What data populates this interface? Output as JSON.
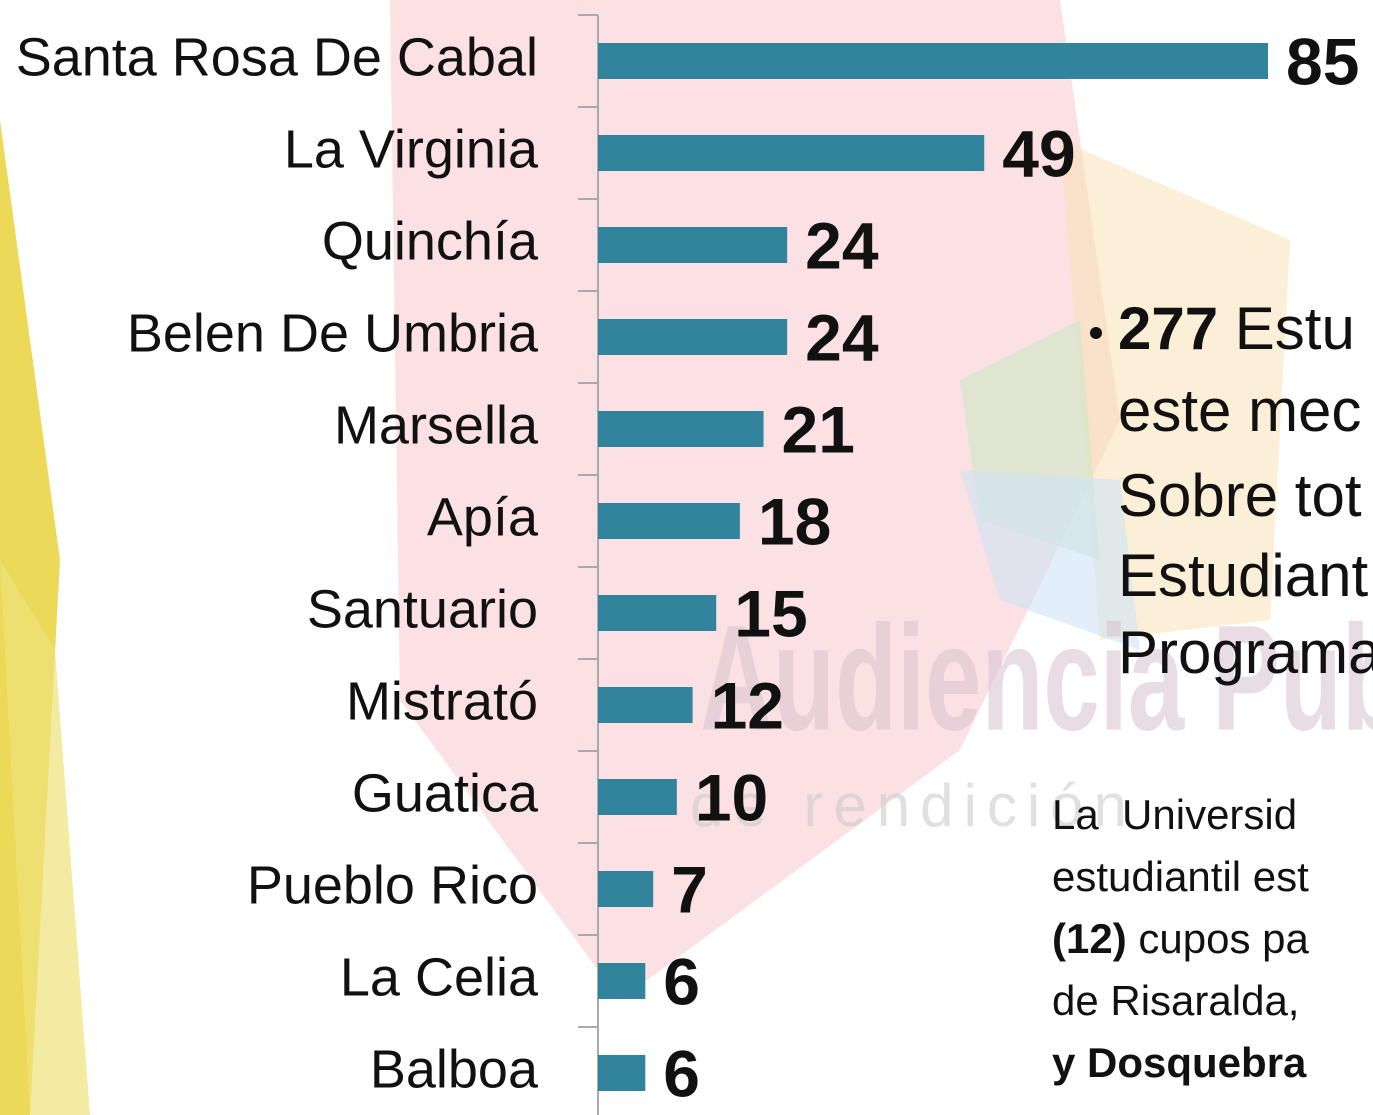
{
  "chart_data": {
    "type": "bar",
    "orientation": "horizontal",
    "categories": [
      "Santa Rosa De Cabal",
      "La Virginia",
      "Quinchía",
      "Belen De Umbria",
      "Marsella",
      "Apía",
      "Santuario",
      "Mistrató",
      "Guatica",
      "Pueblo Rico",
      "La Celia",
      "Balboa"
    ],
    "values": [
      85,
      49,
      24,
      24,
      21,
      18,
      15,
      12,
      10,
      7,
      6,
      6
    ],
    "color": "#31849b",
    "xlim": [
      0,
      85
    ]
  },
  "side_text": {
    "bullet_number": "277",
    "lines": [
      " Estu",
      "este mec",
      "Sobre tot",
      "Estudiant",
      "Programa"
    ]
  },
  "paragraph": {
    "lines": [
      [
        {
          "text": "La  Universid",
          "bold": false
        }
      ],
      [
        {
          "text": "estudiantil est",
          "bold": false
        }
      ],
      [
        {
          "text": "(12)",
          "bold": true
        },
        {
          "text": " cupos pa",
          "bold": false
        }
      ],
      [
        {
          "text": "de Risaralda,",
          "bold": false
        }
      ],
      [
        {
          "text": "y Dosquebra",
          "bold": true
        }
      ]
    ]
  },
  "watermark": {
    "title": "Audiencia Publi",
    "subtitle": "de rendición"
  }
}
